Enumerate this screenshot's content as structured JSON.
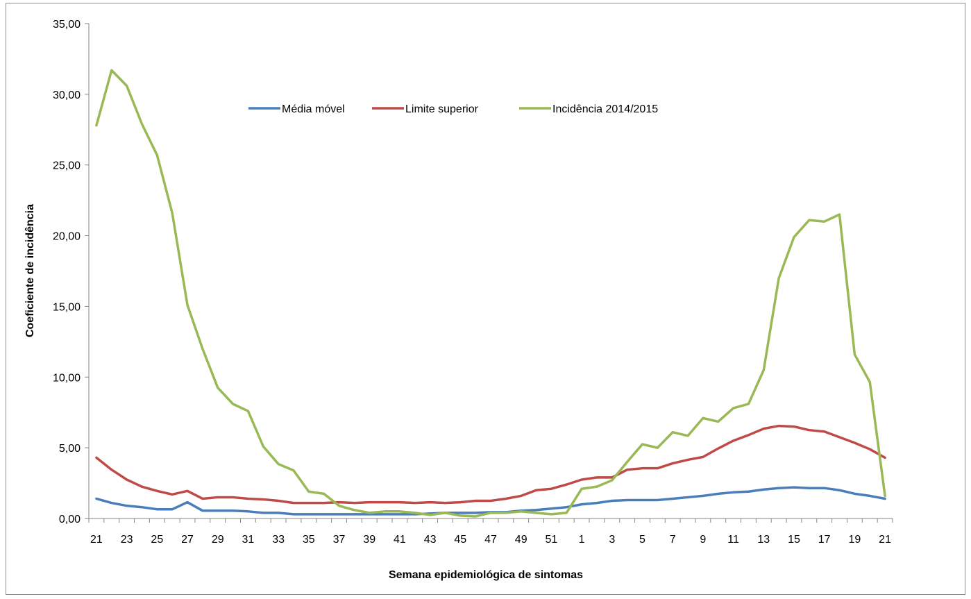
{
  "chart_data": {
    "type": "line",
    "title": "",
    "xlabel": "Semana epidemiológica  de sintomas",
    "ylabel": "Coeficiente de incidência",
    "ylim": [
      0,
      35
    ],
    "yticks": [
      "0,00",
      "5,00",
      "10,00",
      "15,00",
      "20,00",
      "25,00",
      "30,00",
      "35,00"
    ],
    "grid": false,
    "legend_position": "top-center",
    "x": [
      21,
      22,
      23,
      24,
      25,
      26,
      27,
      28,
      29,
      30,
      31,
      32,
      33,
      34,
      35,
      36,
      37,
      38,
      39,
      40,
      41,
      42,
      43,
      44,
      45,
      46,
      47,
      48,
      49,
      50,
      51,
      52,
      1,
      2,
      3,
      4,
      5,
      6,
      7,
      8,
      9,
      10,
      11,
      12,
      13,
      14,
      15,
      16,
      17,
      18,
      19,
      20,
      21
    ],
    "series": [
      {
        "name": "Média móvel",
        "color": "#4a7ebb",
        "values": [
          1.4,
          1.1,
          0.9,
          0.8,
          0.65,
          0.65,
          1.15,
          0.55,
          0.55,
          0.55,
          0.5,
          0.4,
          0.4,
          0.3,
          0.3,
          0.3,
          0.3,
          0.3,
          0.3,
          0.3,
          0.3,
          0.3,
          0.35,
          0.4,
          0.4,
          0.4,
          0.45,
          0.45,
          0.55,
          0.6,
          0.7,
          0.8,
          1.0,
          1.1,
          1.25,
          1.3,
          1.3,
          1.3,
          1.4,
          1.5,
          1.6,
          1.75,
          1.85,
          1.9,
          2.05,
          2.15,
          2.2,
          2.15,
          2.15,
          2.0,
          1.75,
          1.6,
          1.4
        ]
      },
      {
        "name": "Limite superior",
        "color": "#be4b48",
        "values": [
          4.3,
          3.45,
          2.75,
          2.25,
          1.95,
          1.7,
          1.95,
          1.4,
          1.5,
          1.5,
          1.4,
          1.35,
          1.25,
          1.1,
          1.1,
          1.1,
          1.15,
          1.1,
          1.15,
          1.15,
          1.15,
          1.1,
          1.15,
          1.1,
          1.15,
          1.25,
          1.25,
          1.4,
          1.6,
          2.0,
          2.1,
          2.4,
          2.75,
          2.9,
          2.9,
          3.45,
          3.55,
          3.55,
          3.9,
          4.15,
          4.35,
          4.95,
          5.5,
          5.9,
          6.35,
          6.55,
          6.5,
          6.25,
          6.15,
          5.75,
          5.35,
          4.9,
          4.3
        ]
      },
      {
        "name": "Incidência 2014/2015",
        "color": "#98b954",
        "values": [
          27.8,
          31.7,
          30.6,
          27.9,
          25.7,
          21.6,
          15.1,
          12.0,
          9.25,
          8.1,
          7.6,
          5.1,
          3.85,
          3.4,
          1.9,
          1.75,
          0.9,
          0.6,
          0.4,
          0.5,
          0.5,
          0.4,
          0.25,
          0.4,
          0.2,
          0.15,
          0.4,
          0.4,
          0.5,
          0.4,
          0.3,
          0.4,
          2.1,
          2.25,
          2.7,
          4.0,
          5.25,
          5.0,
          6.1,
          5.85,
          7.1,
          6.85,
          7.8,
          8.1,
          10.5,
          17.0,
          19.9,
          21.1,
          21.0,
          21.5,
          11.6,
          9.65,
          1.6
        ]
      }
    ]
  }
}
